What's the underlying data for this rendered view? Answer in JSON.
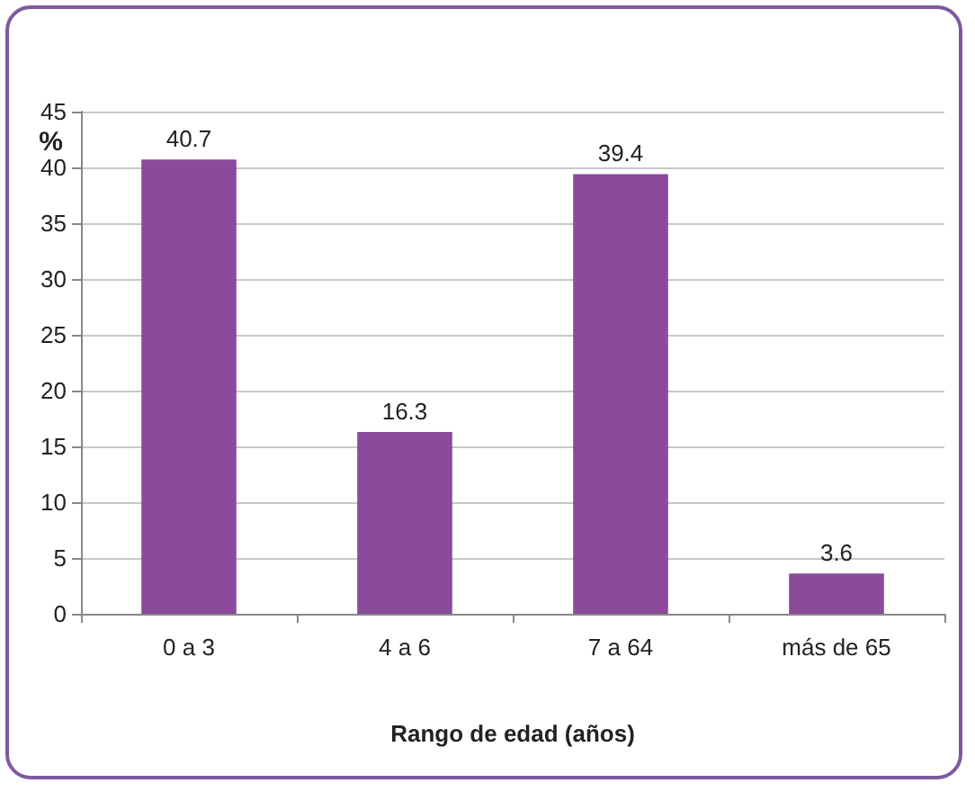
{
  "chart_data": {
    "type": "bar",
    "xlabel": "Rango de edad (años)",
    "ylabel": "%",
    "categories": [
      "0 a 3",
      "4 a 6",
      "7 a 64",
      "más de 65"
    ],
    "values": [
      40.7,
      16.3,
      39.4,
      3.6
    ],
    "color": "#8b4a9c",
    "ylim": [
      0,
      45
    ],
    "yticks": [
      0,
      5,
      10,
      15,
      20,
      25,
      30,
      35,
      40,
      45
    ],
    "grid": "y",
    "data_labels": true
  }
}
